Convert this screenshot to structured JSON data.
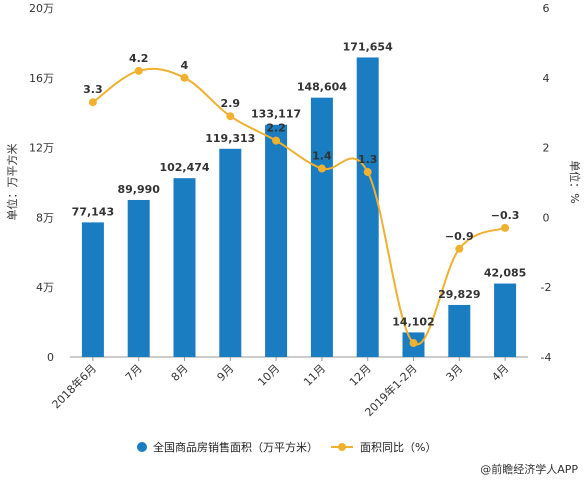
{
  "chart_data": {
    "type": "bar",
    "categories": [
      "2018年6月",
      "7月",
      "8月",
      "9月",
      "10月",
      "11月",
      "12月",
      "2019年1-2月",
      "3月",
      "4月"
    ],
    "series": [
      {
        "name": "全国商品房销售面积（万平方米）",
        "type": "bar",
        "axis": "left",
        "color": "#1a7cc1",
        "values": [
          77143,
          89990,
          102474,
          119313,
          133117,
          148604,
          171654,
          14102,
          29829,
          42085
        ],
        "labels": [
          "77,143",
          "89,990",
          "102,474",
          "119,313",
          "133,117",
          "148,604",
          "171,654",
          "14,102",
          "29,829",
          "42,085"
        ]
      },
      {
        "name": "面积同比（%）",
        "type": "line",
        "axis": "right",
        "color": "#f0b030",
        "values": [
          3.3,
          4.2,
          4.0,
          2.9,
          2.2,
          1.4,
          1.3,
          -3.6,
          -0.9,
          -0.3
        ],
        "labels": [
          "3.3",
          "4.2",
          "4",
          "2.9",
          "2.2",
          "1.4",
          "1.3",
          "",
          "−0.9",
          "−0.3"
        ]
      }
    ],
    "y_left": {
      "label": "单位：万平方米",
      "range": [
        0,
        200000
      ],
      "ticks": [
        0,
        40000,
        80000,
        120000,
        160000,
        200000
      ],
      "tick_labels": [
        "0",
        "4万",
        "8万",
        "12万",
        "16万",
        "20万"
      ]
    },
    "y_right": {
      "label": "单位：%",
      "range": [
        -4,
        6
      ],
      "ticks": [
        -4,
        -2,
        0,
        2,
        4,
        6
      ],
      "tick_labels": [
        "-4",
        "-2",
        "0",
        "2",
        "4",
        "6"
      ]
    },
    "grid": false,
    "legend_position": "bottom"
  },
  "credit": "@前瞻经济学人APP"
}
